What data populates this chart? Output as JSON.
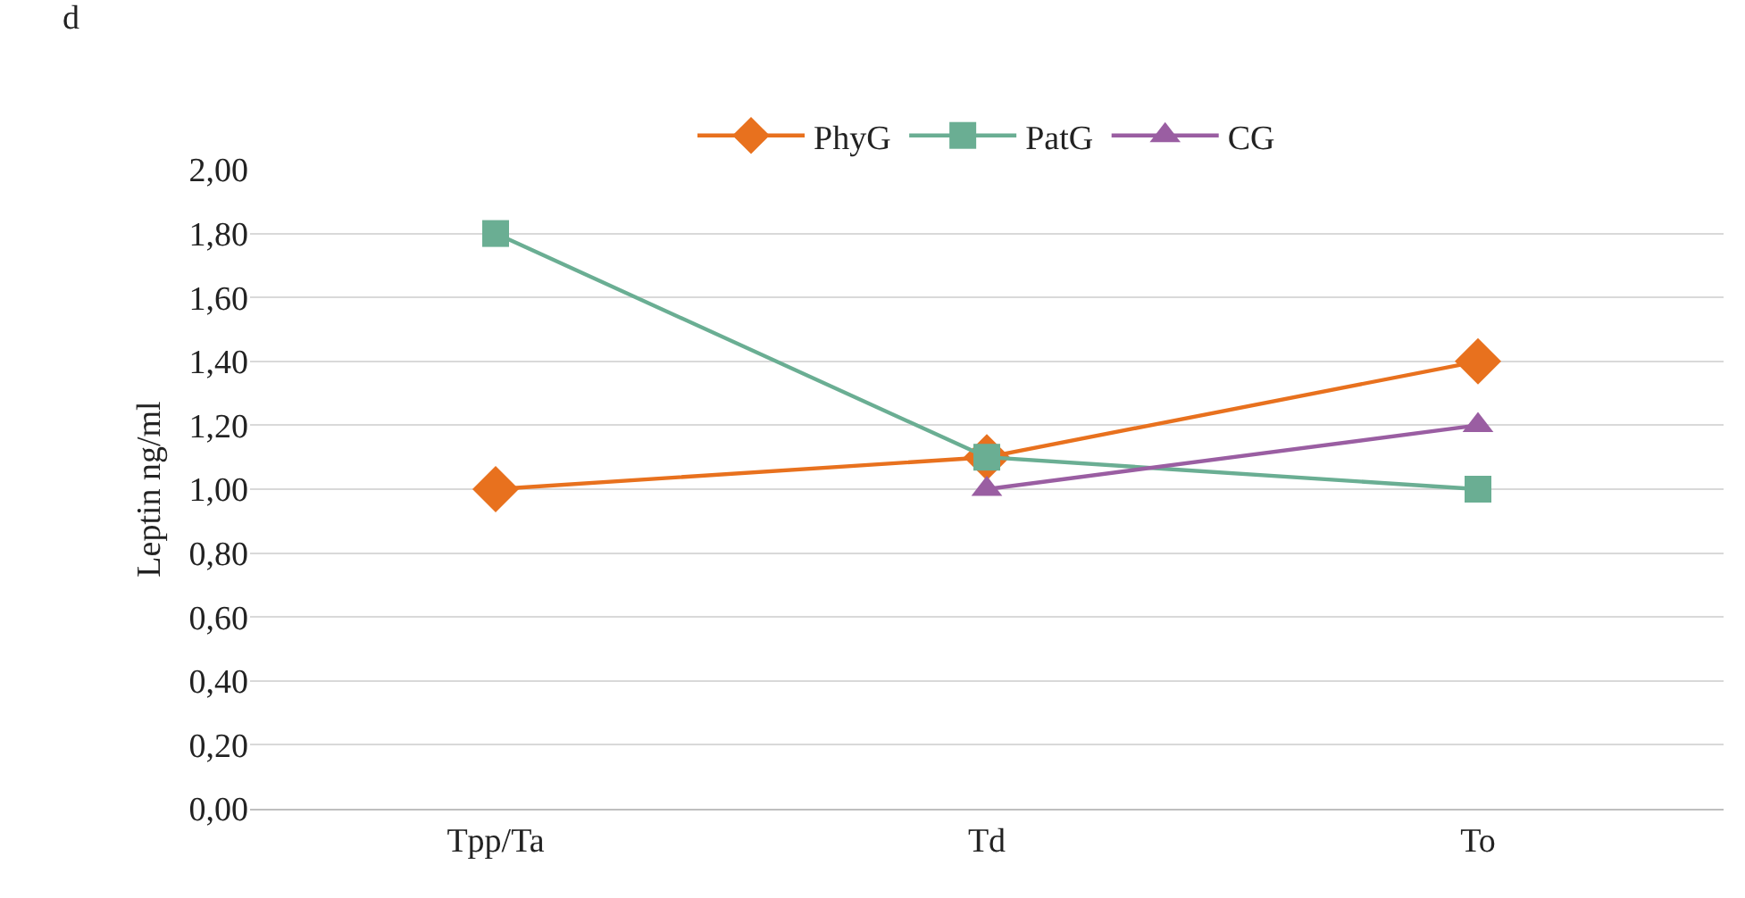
{
  "chart_data": {
    "type": "line",
    "ylabel": "Leptin ng/ml",
    "annotations": [
      "d"
    ],
    "categories": [
      "Tpp/Ta",
      "Td",
      "To"
    ],
    "series": [
      {
        "name": "PhyG",
        "color": "#e8711e",
        "values": [
          1.0,
          1.1,
          1.4
        ],
        "marker": "diamond"
      },
      {
        "name": "PatG",
        "color": "#6aae93",
        "values": [
          1.8,
          1.1,
          1.0
        ],
        "marker": "square"
      },
      {
        "name": "CG",
        "color": "#9a5ea2",
        "values": [
          null,
          1.0,
          1.2
        ],
        "marker": "triangle"
      }
    ],
    "ylim": [
      0,
      2
    ],
    "yticks": [
      {
        "value": 0,
        "label": "0,00"
      },
      {
        "value": 0.2,
        "label": "0,20"
      },
      {
        "value": 0.4,
        "label": "0,40"
      },
      {
        "value": 0.6,
        "label": "0,60"
      },
      {
        "value": 0.8,
        "label": "0,80"
      },
      {
        "value": 1,
        "label": "1,00"
      },
      {
        "value": 1.2,
        "label": "1,20"
      },
      {
        "value": 1.4,
        "label": "1,40"
      },
      {
        "value": 1.6,
        "label": "1,60"
      },
      {
        "value": 1.8,
        "label": "1,80"
      },
      {
        "value": 2,
        "label": "2,00"
      }
    ],
    "grid": "y",
    "legend": "top",
    "line_style": "solid"
  }
}
